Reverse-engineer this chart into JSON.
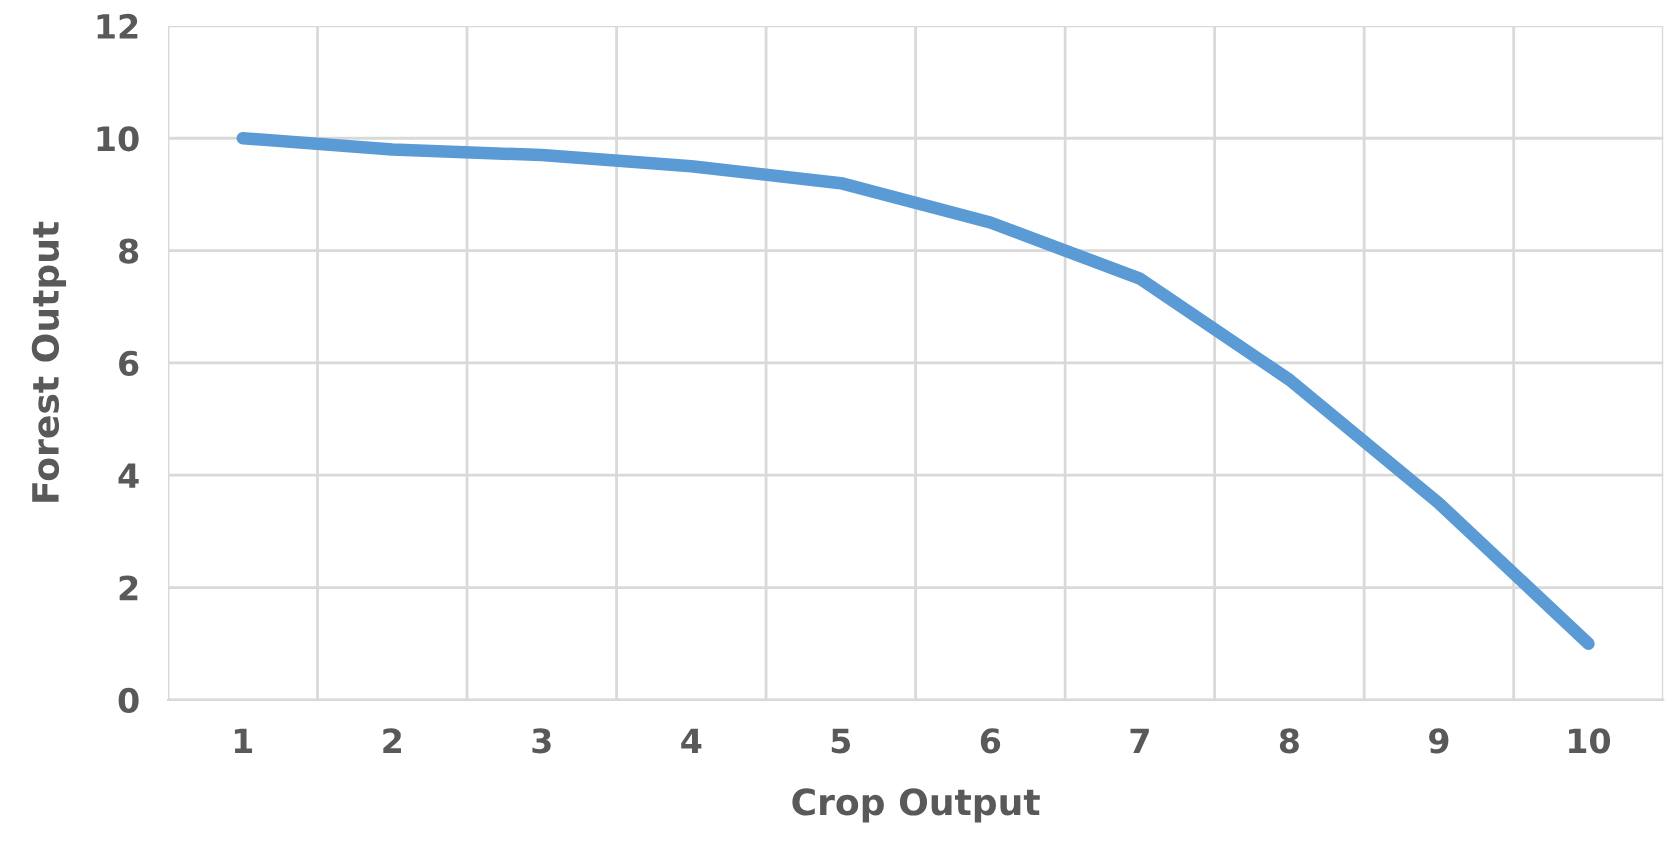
{
  "chart_data": {
    "type": "line",
    "xlabel": "Crop Output",
    "ylabel": "Forest Output",
    "categories": [
      "1",
      "2",
      "3",
      "4",
      "5",
      "6",
      "7",
      "8",
      "9",
      "10"
    ],
    "series": [
      {
        "color": "#5b9bd5",
        "values": [
          10,
          9.8,
          9.7,
          9.5,
          9.2,
          8.5,
          7.5,
          5.7,
          3.5,
          1.0
        ]
      }
    ],
    "ylim": [
      0,
      12
    ],
    "yticks": [
      0,
      2,
      4,
      6,
      8,
      10,
      12
    ],
    "grid": true,
    "marker": "none",
    "line_style": "solid"
  }
}
